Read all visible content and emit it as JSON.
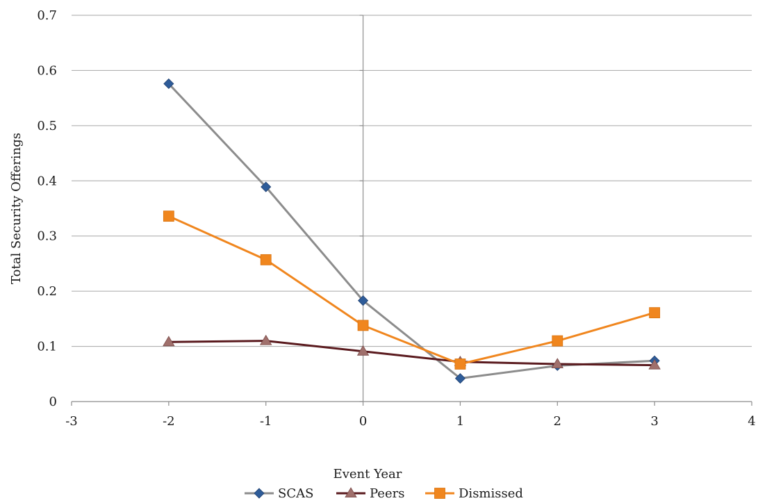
{
  "chart_data": {
    "type": "line",
    "title": "",
    "xlabel": "Event Year",
    "ylabel": "Total Security Offerings",
    "xlim": [
      -3,
      4
    ],
    "ylim": [
      0,
      0.7
    ],
    "xticks": [
      -3,
      -2,
      -1,
      0,
      1,
      2,
      3,
      4
    ],
    "yticks": [
      0,
      0.1,
      0.2,
      0.3,
      0.4,
      0.5,
      0.6,
      0.7
    ],
    "xtick_labels": [
      "-3",
      "-2",
      "-1",
      "0",
      "1",
      "2",
      "3",
      "4"
    ],
    "ytick_labels": [
      "0",
      "0.1",
      "0.2",
      "0.3",
      "0.4",
      "0.5",
      "0.6",
      "0.7"
    ],
    "grid": "horizontal",
    "legend_position": "bottom",
    "x": [
      -2,
      -1,
      0,
      1,
      2,
      3
    ],
    "series": [
      {
        "name": "SCAS",
        "values": [
          0.576,
          0.389,
          0.183,
          0.042,
          0.065,
          0.074
        ],
        "line_color": "#8c8c8c",
        "marker": "diamond",
        "marker_color": "#2e5c99"
      },
      {
        "name": "Peers",
        "values": [
          0.108,
          0.11,
          0.091,
          0.072,
          0.068,
          0.066
        ],
        "line_color": "#5a1a1e",
        "marker": "triangle",
        "marker_color": "#a0706c"
      },
      {
        "name": "Dismissed",
        "values": [
          0.336,
          0.257,
          0.138,
          0.068,
          0.11,
          0.161
        ],
        "line_color": "#f0861e",
        "marker": "square",
        "marker_color": "#f0861e"
      }
    ]
  }
}
